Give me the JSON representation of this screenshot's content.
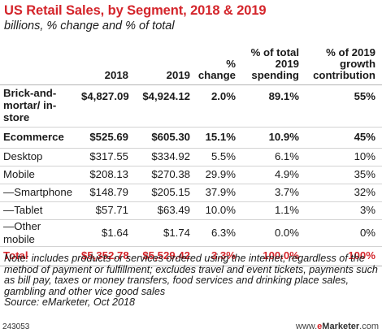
{
  "title": "US Retail Sales, by Segment, 2018 & 2019",
  "subtitle": "billions, % change and % of total",
  "table": {
    "headers": [
      "",
      "2018",
      "2019",
      "% change",
      "% of total 2019 spending",
      "% of 2019 growth contribution"
    ],
    "rows": [
      {
        "label": "Brick-and-mortar/ in-store",
        "v2018": "$4,827.09",
        "v2019": "$4,924.12",
        "change": "2.0%",
        "share": "89.1%",
        "growth": "55%"
      },
      {
        "label": "Ecommerce",
        "v2018": "$525.69",
        "v2019": "$605.30",
        "change": "15.1%",
        "share": "10.9%",
        "growth": "45%"
      },
      {
        "label": "Desktop",
        "v2018": "$317.55",
        "v2019": "$334.92",
        "change": "5.5%",
        "share": "6.1%",
        "growth": "10%"
      },
      {
        "label": "Mobile",
        "v2018": "$208.13",
        "v2019": "$270.38",
        "change": "29.9%",
        "share": "4.9%",
        "growth": "35%"
      },
      {
        "label": "—Smartphone",
        "v2018": "$148.79",
        "v2019": "$205.15",
        "change": "37.9%",
        "share": "3.7%",
        "growth": "32%"
      },
      {
        "label": "—Tablet",
        "v2018": "$57.71",
        "v2019": "$63.49",
        "change": "10.0%",
        "share": "1.1%",
        "growth": "3%"
      },
      {
        "label": "—Other mobile",
        "v2018": "$1.64",
        "v2019": "$1.74",
        "change": "6.3%",
        "share": "0.0%",
        "growth": "0%"
      },
      {
        "label": "Total",
        "v2018": "$5,352.78",
        "v2019": "$5,529.42",
        "change": "3.3%",
        "share": "100.0%",
        "growth": "100%"
      }
    ]
  },
  "note": "Note: includes products or services ordered using the internet, regardless of the method of payment or fulfillment; excludes travel and event tickets, payments such as bill pay, taxes or money transfers, food services and drinking place sales, gambling and other vice good sales",
  "source": "Source: eMarketer, Oct 2018",
  "footer": {
    "id": "243053",
    "site_prefix": "www.",
    "site_brand_e": "e",
    "site_brand": "Marketer",
    "site_suffix": ".com"
  },
  "colors": {
    "accent": "#d4252b",
    "rule": "#b5b5b5"
  }
}
